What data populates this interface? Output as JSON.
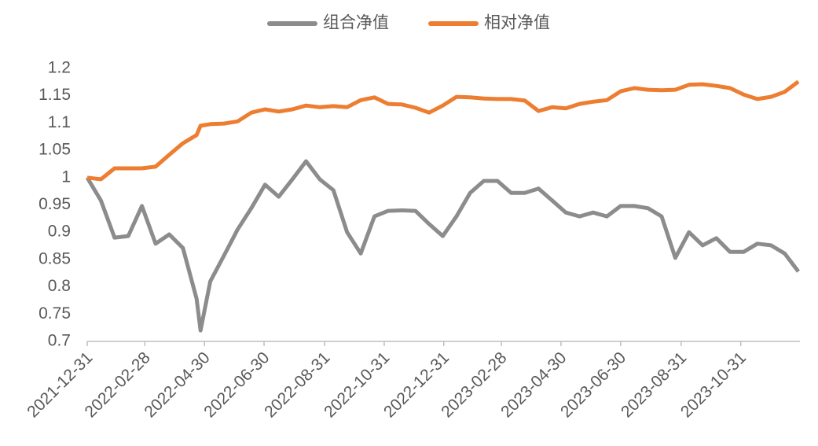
{
  "chart_data": {
    "type": "line",
    "x": [
      "2021-12-31",
      "2022-01-14",
      "2022-01-28",
      "2022-02-11",
      "2022-02-25",
      "2022-03-11",
      "2022-03-25",
      "2022-04-08",
      "2022-04-22",
      "2022-04-26",
      "2022-05-06",
      "2022-05-20",
      "2022-06-03",
      "2022-06-17",
      "2022-07-01",
      "2022-07-15",
      "2022-07-29",
      "2022-08-12",
      "2022-08-26",
      "2022-09-09",
      "2022-09-23",
      "2022-10-07",
      "2022-10-21",
      "2022-11-04",
      "2022-11-18",
      "2022-12-02",
      "2022-12-16",
      "2022-12-30",
      "2023-01-13",
      "2023-01-27",
      "2023-02-10",
      "2023-02-24",
      "2023-03-10",
      "2023-03-24",
      "2023-04-07",
      "2023-04-21",
      "2023-05-05",
      "2023-05-19",
      "2023-06-02",
      "2023-06-16",
      "2023-06-30",
      "2023-07-14",
      "2023-07-28",
      "2023-08-11",
      "2023-08-25",
      "2023-09-08",
      "2023-09-22",
      "2023-10-06",
      "2023-10-20",
      "2023-11-03",
      "2023-11-17",
      "2023-12-01",
      "2023-12-15",
      "2023-12-29"
    ],
    "series": [
      {
        "name": "组合净值",
        "color": "#8c8c8c",
        "values": [
          1.0,
          0.958,
          0.89,
          0.893,
          0.948,
          0.879,
          0.896,
          0.871,
          0.778,
          0.72,
          0.81,
          0.857,
          0.905,
          0.944,
          0.987,
          0.965,
          0.997,
          1.03,
          0.997,
          0.977,
          0.9,
          0.861,
          0.929,
          0.939,
          0.94,
          0.939,
          0.915,
          0.893,
          0.929,
          0.972,
          0.994,
          0.994,
          0.972,
          0.972,
          0.98,
          0.958,
          0.936,
          0.929,
          0.936,
          0.929,
          0.948,
          0.948,
          0.944,
          0.929,
          0.853,
          0.9,
          0.876,
          0.889,
          0.864,
          0.864,
          0.879,
          0.876,
          0.861,
          0.828
        ]
      },
      {
        "name": "相对净值",
        "color": "#ed7d31",
        "values": [
          1.0,
          0.997,
          1.017,
          1.017,
          1.017,
          1.02,
          1.042,
          1.063,
          1.078,
          1.095,
          1.098,
          1.099,
          1.103,
          1.119,
          1.125,
          1.121,
          1.125,
          1.132,
          1.129,
          1.131,
          1.129,
          1.142,
          1.147,
          1.135,
          1.134,
          1.128,
          1.119,
          1.132,
          1.148,
          1.147,
          1.145,
          1.144,
          1.144,
          1.141,
          1.122,
          1.129,
          1.127,
          1.135,
          1.139,
          1.142,
          1.158,
          1.164,
          1.161,
          1.16,
          1.161,
          1.17,
          1.171,
          1.168,
          1.164,
          1.152,
          1.144,
          1.148,
          1.157,
          1.176
        ]
      }
    ],
    "xlim": [
      "2021-12-31",
      "2023-12-29"
    ],
    "xticks": [
      "2021-12-31",
      "2022-02-28",
      "2022-04-30",
      "2022-06-30",
      "2022-08-31",
      "2022-10-31",
      "2022-12-31",
      "2023-02-28",
      "2023-04-30",
      "2023-06-30",
      "2023-08-31",
      "2023-10-31"
    ],
    "ylim": [
      0.7,
      1.2
    ],
    "yticks": [
      0.7,
      0.75,
      0.8,
      0.85,
      0.9,
      0.95,
      1,
      1.05,
      1.1,
      1.15,
      1.2
    ],
    "grid": false,
    "legend": "top"
  }
}
